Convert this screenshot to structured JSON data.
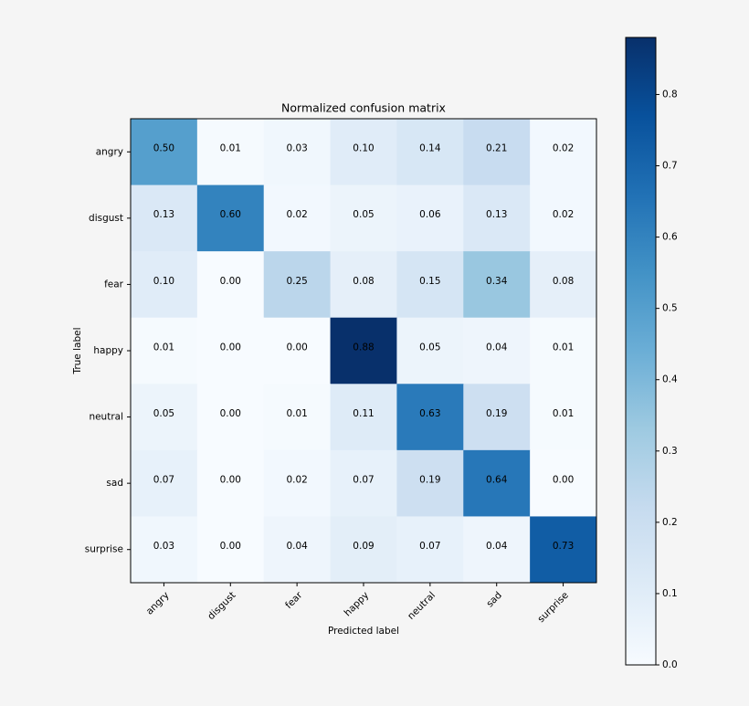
{
  "chart_data": {
    "type": "heatmap",
    "title": "Normalized confusion matrix",
    "xlabel": "Predicted label",
    "ylabel": "True label",
    "x_categories": [
      "angry",
      "disgust",
      "fear",
      "happy",
      "neutral",
      "sad",
      "surprise"
    ],
    "y_categories": [
      "angry",
      "disgust",
      "fear",
      "happy",
      "neutral",
      "sad",
      "surprise"
    ],
    "values": [
      [
        0.5,
        0.01,
        0.03,
        0.1,
        0.14,
        0.21,
        0.02
      ],
      [
        0.13,
        0.6,
        0.02,
        0.05,
        0.06,
        0.13,
        0.02
      ],
      [
        0.1,
        0,
        0.25,
        0.08,
        0.15,
        0.34,
        0.08
      ],
      [
        0.01,
        0,
        0,
        0.88,
        0.05,
        0.04,
        0.01
      ],
      [
        0.05,
        0,
        0.01,
        0.11,
        0.63,
        0.19,
        0.01
      ],
      [
        0.07,
        0,
        0.02,
        0.07,
        0.19,
        0.64,
        0
      ],
      [
        0.03,
        0,
        0.04,
        0.09,
        0.07,
        0.04,
        0.73
      ]
    ],
    "value_labels": [
      [
        "0.50",
        "0.01",
        "0.03",
        "0.10",
        "0.14",
        "0.21",
        "0.02"
      ],
      [
        "0.13",
        "0.60",
        "0.02",
        "0.05",
        "0.06",
        "0.13",
        "0.02"
      ],
      [
        "0.10",
        "0.00",
        "0.25",
        "0.08",
        "0.15",
        "0.34",
        "0.08"
      ],
      [
        "0.01",
        "0.00",
        "0.00",
        "0.88",
        "0.05",
        "0.04",
        "0.01"
      ],
      [
        "0.05",
        "0.00",
        "0.01",
        "0.11",
        "0.63",
        "0.19",
        "0.01"
      ],
      [
        "0.07",
        "0.00",
        "0.02",
        "0.07",
        "0.19",
        "0.64",
        "0.00"
      ],
      [
        "0.03",
        "0.00",
        "0.04",
        "0.09",
        "0.07",
        "0.04",
        "0.73"
      ]
    ],
    "colormap": [
      "#f7fbff",
      "#deebf7",
      "#c6dbef",
      "#9ecae1",
      "#6baed6",
      "#4292c6",
      "#2171b5",
      "#08519c",
      "#08306b"
    ],
    "clim": [
      0,
      0.88
    ],
    "cticks": [
      {
        "value": 0,
        "label": "0.0"
      },
      0.1,
      0.2,
      0.3,
      0.4,
      0.5,
      0.6,
      0.7,
      0.8
    ]
  }
}
